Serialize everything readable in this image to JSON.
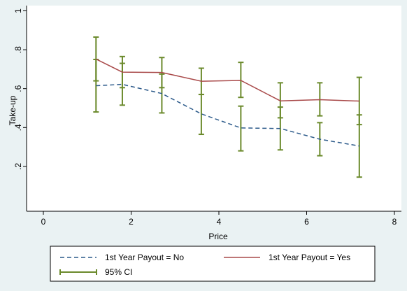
{
  "chart_data": {
    "type": "line",
    "xlabel": "Price",
    "ylabel": "Take-up",
    "xlim": [
      0,
      8
    ],
    "ylim": [
      0,
      1
    ],
    "x_ticks": [
      "0",
      "2",
      "4",
      "6",
      "8"
    ],
    "y_ticks": [
      ".2",
      ".4",
      ".6",
      ".8",
      "1"
    ],
    "x": [
      1.2,
      1.8,
      2.7,
      3.6,
      4.5,
      5.4,
      6.3,
      7.2
    ],
    "series": [
      {
        "name": "1st Year Payout = No",
        "style": "dashed",
        "color": "#2c5a8a",
        "values": [
          0.615,
          0.622,
          0.575,
          0.47,
          0.398,
          0.395,
          0.34,
          0.305
        ],
        "ci_low": [
          0.48,
          0.515,
          0.475,
          0.365,
          0.28,
          0.285,
          0.255,
          0.145
        ],
        "ci_high": [
          0.75,
          0.73,
          0.675,
          0.57,
          0.51,
          0.505,
          0.425,
          0.465
        ]
      },
      {
        "name": "1st Year Payout = Yes",
        "style": "solid",
        "color": "#a94a4a",
        "values": [
          0.752,
          0.685,
          0.683,
          0.638,
          0.642,
          0.537,
          0.543,
          0.536
        ],
        "ci_low": [
          0.64,
          0.605,
          0.605,
          0.57,
          0.555,
          0.45,
          0.46,
          0.415
        ],
        "ci_high": [
          0.865,
          0.765,
          0.76,
          0.705,
          0.735,
          0.63,
          0.63,
          0.658
        ]
      }
    ],
    "ci_label": "95% CI",
    "ci_color": "#6b8a2c",
    "legend_position": "bottom",
    "grid": false,
    "background": "#eaf2f3",
    "plot_background": "#ffffff"
  }
}
